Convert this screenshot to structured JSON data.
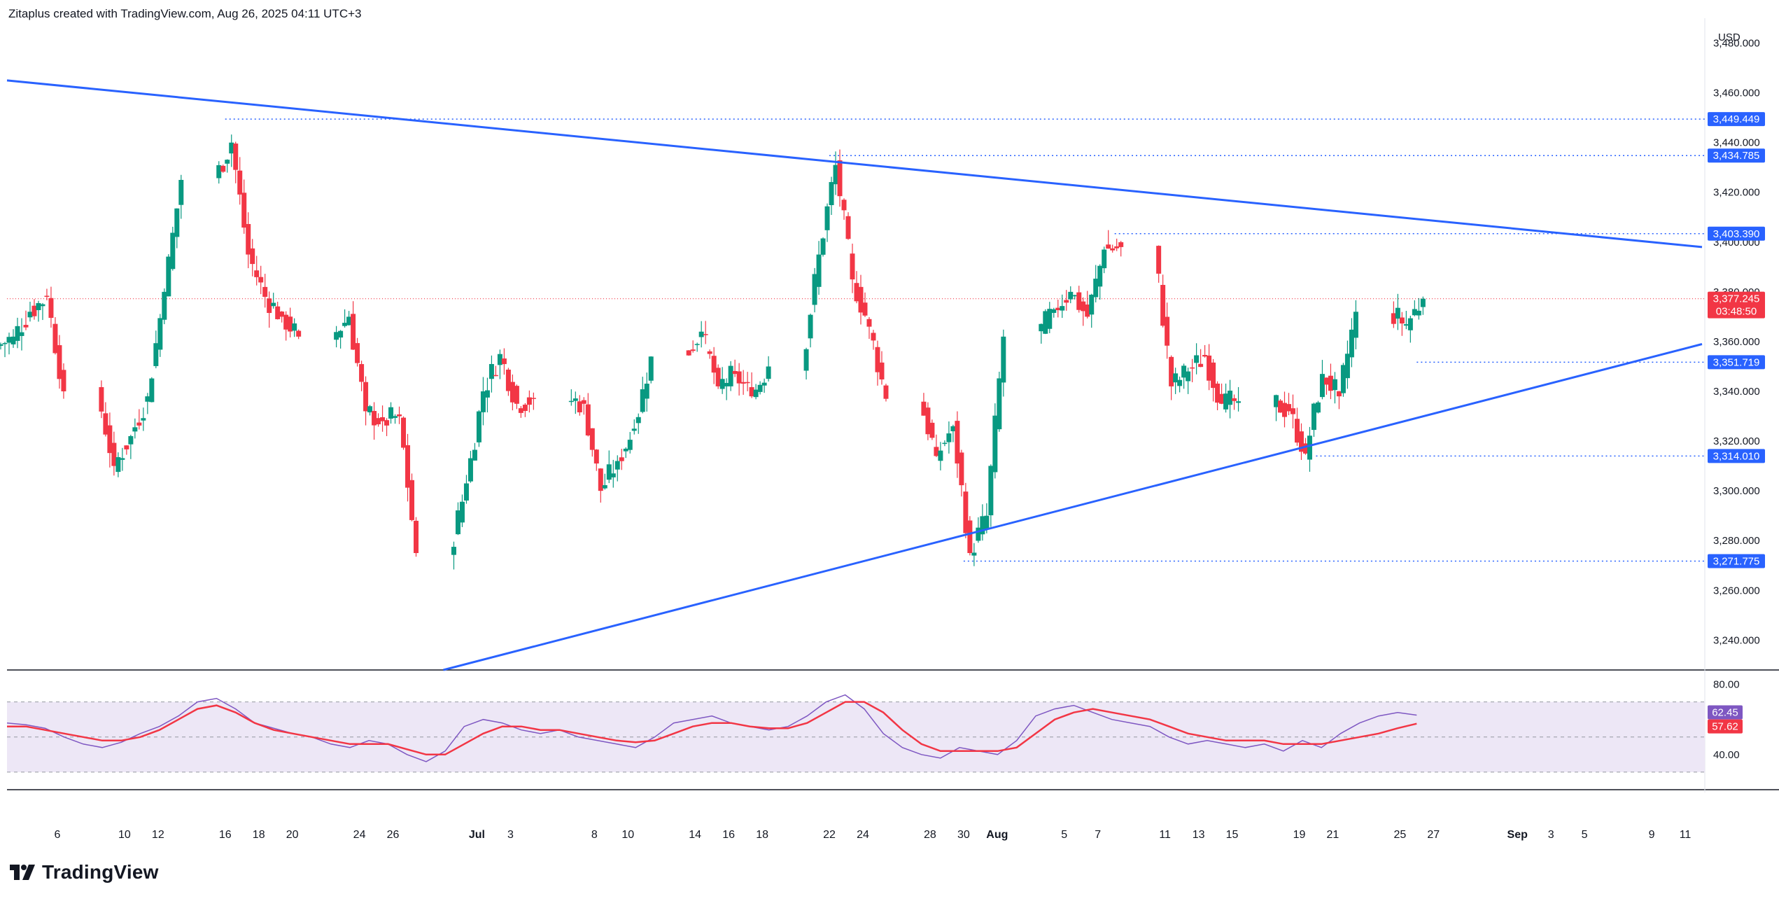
{
  "header": {
    "caption": "Zitaplus created with TradingView.com, Aug 26, 2025 04:11 UTC+3"
  },
  "brand": {
    "name": "TradingView",
    "logo_icon": "tradingview-logo-icon"
  },
  "colors": {
    "up": "#089981",
    "down": "#f23645",
    "trendline": "#2962ff",
    "level": "#2962ff",
    "current": "#f23645",
    "rsi_line": "#7e57c2",
    "rsi_ma": "#f23645",
    "rsi_band": "#ede7f6"
  },
  "chart_data": [
    {
      "type": "candlestick",
      "title": "",
      "currency_label": "USD",
      "ylim": [
        3228,
        3490
      ],
      "y_ticks": [
        "3,480.000",
        "3,460.000",
        "3,440.000",
        "3,420.000",
        "3,400.000",
        "3,380.000",
        "3,360.000",
        "3,340.000",
        "3,320.000",
        "3,300.000",
        "3,280.000",
        "3,260.000",
        "3,240.000"
      ],
      "y_tick_values": [
        3480,
        3460,
        3440,
        3420,
        3400,
        3380,
        3360,
        3340,
        3320,
        3300,
        3280,
        3260,
        3240
      ],
      "x_tick_labels": [
        "6",
        "10",
        "12",
        "16",
        "18",
        "20",
        "24",
        "26",
        "Jul",
        "3",
        "8",
        "10",
        "14",
        "16",
        "18",
        "22",
        "24",
        "28",
        "30",
        "Aug",
        "5",
        "7",
        "11",
        "13",
        "15",
        "19",
        "21",
        "25",
        "27",
        "Sep",
        "3",
        "5",
        "9",
        "11"
      ],
      "x_range_days": [
        "Jun 3, 2025",
        "Sep 12, 2025"
      ],
      "key_points": [
        {
          "date": "Jun 3",
          "price": 3362
        },
        {
          "date": "Jun 4",
          "price": 3372
        },
        {
          "date": "Jun 5",
          "price": 3378
        },
        {
          "date": "Jun 6",
          "price": 3340
        },
        {
          "date": "Jun 9",
          "price": 3310
        },
        {
          "date": "Jun 10",
          "price": 3322
        },
        {
          "date": "Jun 11",
          "price": 3338
        },
        {
          "date": "Jun 12",
          "price": 3380
        },
        {
          "date": "Jun 13",
          "price": 3425
        },
        {
          "date": "Jun 16",
          "price": 3440
        },
        {
          "date": "Jun 17",
          "price": 3395
        },
        {
          "date": "Jun 18",
          "price": 3378
        },
        {
          "date": "Jun 19",
          "price": 3370
        },
        {
          "date": "Jun 20",
          "price": 3362
        },
        {
          "date": "Jun 23",
          "price": 3370
        },
        {
          "date": "Jun 24",
          "price": 3332
        },
        {
          "date": "Jun 25",
          "price": 3328
        },
        {
          "date": "Jun 26",
          "price": 3330
        },
        {
          "date": "Jun 27",
          "price": 3275
        },
        {
          "date": "Jun 30",
          "price": 3303
        },
        {
          "date": "Jul 1",
          "price": 3340
        },
        {
          "date": "Jul 2",
          "price": 3355
        },
        {
          "date": "Jul 3",
          "price": 3335
        },
        {
          "date": "Jul 4",
          "price": 3337
        },
        {
          "date": "Jul 7",
          "price": 3335
        },
        {
          "date": "Jul 8",
          "price": 3300
        },
        {
          "date": "Jul 9",
          "price": 3312
        },
        {
          "date": "Jul 10",
          "price": 3325
        },
        {
          "date": "Jul 11",
          "price": 3354
        },
        {
          "date": "Jul 14",
          "price": 3364
        },
        {
          "date": "Jul 15",
          "price": 3342
        },
        {
          "date": "Jul 16",
          "price": 3347
        },
        {
          "date": "Jul 17",
          "price": 3338
        },
        {
          "date": "Jul 18",
          "price": 3350
        },
        {
          "date": "Jul 21",
          "price": 3395
        },
        {
          "date": "Jul 22",
          "price": 3431
        },
        {
          "date": "Jul 23",
          "price": 3385
        },
        {
          "date": "Jul 24",
          "price": 3366
        },
        {
          "date": "Jul 25",
          "price": 3337
        },
        {
          "date": "Jul 28",
          "price": 3314
        },
        {
          "date": "Jul 29",
          "price": 3326
        },
        {
          "date": "Jul 30",
          "price": 3275
        },
        {
          "date": "Jul 31",
          "price": 3290
        },
        {
          "date": "Aug 1",
          "price": 3362
        },
        {
          "date": "Aug 4",
          "price": 3373
        },
        {
          "date": "Aug 5",
          "price": 3380
        },
        {
          "date": "Aug 6",
          "price": 3370
        },
        {
          "date": "Aug 7",
          "price": 3397
        },
        {
          "date": "Aug 8",
          "price": 3398
        },
        {
          "date": "Aug 11",
          "price": 3342
        },
        {
          "date": "Aug 12",
          "price": 3348
        },
        {
          "date": "Aug 13",
          "price": 3354
        },
        {
          "date": "Aug 14",
          "price": 3335
        },
        {
          "date": "Aug 15",
          "price": 3336
        },
        {
          "date": "Aug 18",
          "price": 3332
        },
        {
          "date": "Aug 19",
          "price": 3315
        },
        {
          "date": "Aug 20",
          "price": 3347
        },
        {
          "date": "Aug 21",
          "price": 3338
        },
        {
          "date": "Aug 22",
          "price": 3372
        },
        {
          "date": "Aug 25",
          "price": 3367
        },
        {
          "date": "Aug 26",
          "price": 3377.245
        }
      ],
      "price_levels": [
        {
          "label": "3,449.449",
          "value": 3449.449,
          "from": "Jun 16"
        },
        {
          "label": "3,434.785",
          "value": 3434.785,
          "from": "Jul 22"
        },
        {
          "label": "3,403.390",
          "value": 3403.39,
          "from": "Aug 8"
        },
        {
          "label": "3,351.719",
          "value": 3351.719,
          "from": "Aug 26"
        },
        {
          "label": "3,314.010",
          "value": 3314.01,
          "from": "Aug 20"
        },
        {
          "label": "3,271.775",
          "value": 3271.775,
          "from": "Jul 30"
        }
      ],
      "current_price": {
        "label": "3,377.245",
        "countdown": "03:48:50",
        "value": 3377.245
      },
      "trendlines": [
        {
          "name": "descending-resistance",
          "start": {
            "date": "Jun 3",
            "price": 3465
          },
          "end": {
            "date": "Sep 12",
            "price": 3398
          }
        },
        {
          "name": "ascending-support",
          "start": {
            "date": "Jun 29",
            "price": 3228
          },
          "end": {
            "date": "Sep 12",
            "price": 3359
          }
        }
      ],
      "grid": false
    },
    {
      "type": "line",
      "title": "",
      "ylim": [
        20,
        85
      ],
      "y_ticks": [
        "80.00",
        "40.00"
      ],
      "y_tick_values": [
        80,
        40
      ],
      "band": [
        30,
        70
      ],
      "series": [
        {
          "values_label": "62.45",
          "last": 62.45,
          "points": [
            58,
            57,
            55,
            50,
            46,
            44,
            47,
            52,
            56,
            62,
            70,
            72,
            66,
            58,
            55,
            52,
            50,
            46,
            44,
            48,
            46,
            40,
            36,
            42,
            56,
            60,
            58,
            54,
            52,
            54,
            50,
            48,
            46,
            44,
            50,
            58,
            60,
            62,
            58,
            56,
            54,
            56,
            62,
            70,
            74,
            66,
            52,
            44,
            40,
            38,
            44,
            42,
            40,
            48,
            62,
            66,
            68,
            64,
            60,
            58,
            56,
            50,
            46,
            48,
            46,
            44,
            46,
            42,
            48,
            44,
            52,
            58,
            62,
            64,
            62.45
          ]
        },
        {
          "values_label": "57.62",
          "last": 57.62,
          "points": [
            56,
            56,
            54,
            52,
            50,
            48,
            48,
            50,
            54,
            60,
            66,
            68,
            64,
            58,
            54,
            52,
            50,
            48,
            46,
            46,
            46,
            43,
            40,
            40,
            46,
            52,
            56,
            56,
            54,
            54,
            52,
            50,
            48,
            47,
            48,
            52,
            56,
            58,
            58,
            56,
            55,
            55,
            58,
            64,
            70,
            70,
            64,
            54,
            46,
            42,
            42,
            42,
            42,
            44,
            52,
            60,
            64,
            66,
            64,
            62,
            60,
            56,
            52,
            50,
            48,
            48,
            48,
            46,
            46,
            46,
            48,
            50,
            52,
            55,
            57.62
          ]
        }
      ]
    }
  ]
}
